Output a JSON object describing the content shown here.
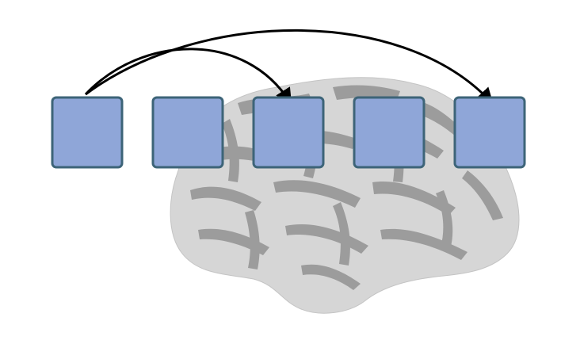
{
  "diagram": {
    "box_count": 5,
    "arrows": [
      {
        "from": 1,
        "to": 3
      },
      {
        "from": 1,
        "to": 5
      }
    ],
    "colors": {
      "box_fill": "#8fa6d8",
      "box_stroke": "#3d6478",
      "arrow": "#000000",
      "brain_light": "#d6d6d6",
      "brain_dark": "#9c9c9c"
    }
  }
}
